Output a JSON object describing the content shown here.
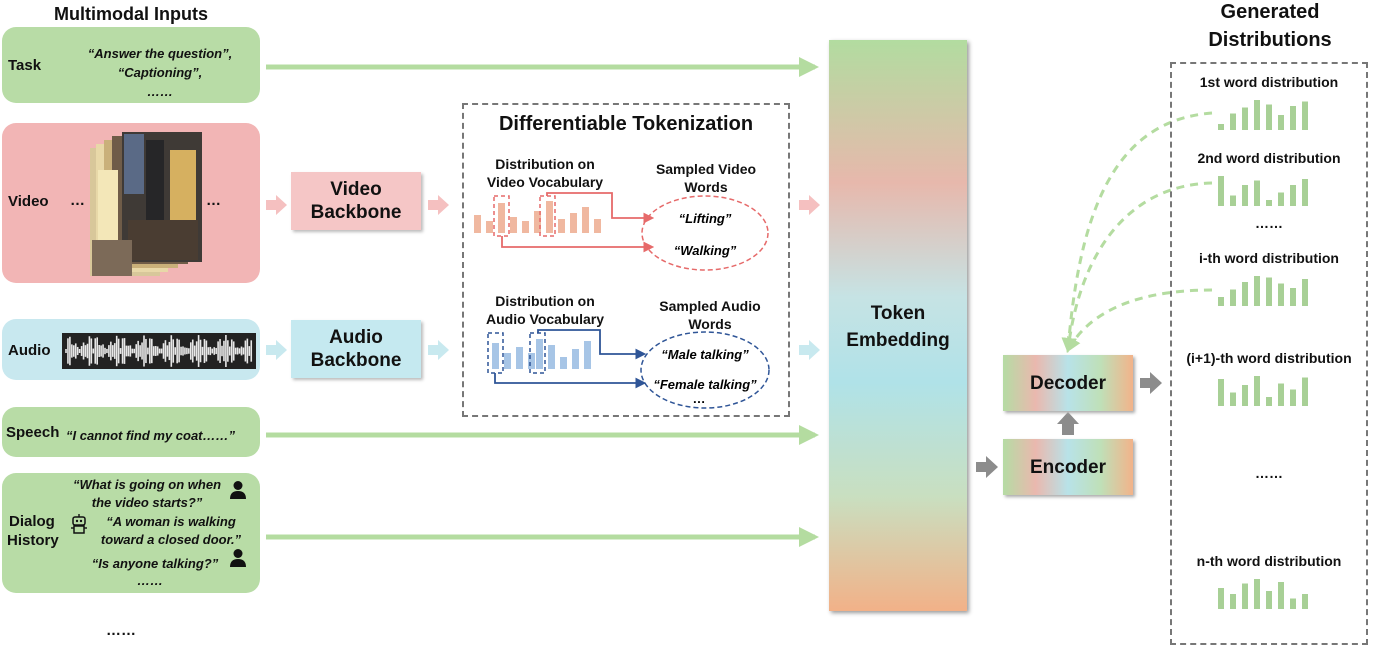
{
  "inputs_header": "Multimodal Inputs",
  "task": {
    "label": "Task",
    "lines": [
      "“Answer the question”,",
      "“Captioning”,",
      "……"
    ]
  },
  "video": {
    "label": "Video",
    "ellipsis_left": "…",
    "ellipsis_right": "…"
  },
  "audio": {
    "label": "Audio"
  },
  "speech": {
    "label": "Speech",
    "text": "“I cannot find my coat……”"
  },
  "dialog": {
    "label_line1": "Dialog",
    "label_line2": "History",
    "q1_line1": "“What is going on when",
    "q1_line2": "the video starts?”",
    "a1_line1": "“A woman is walking",
    "a1_line2": "toward a closed door.”",
    "q2": "“Is anyone talking?”",
    "more": "……"
  },
  "inputs_more": "……",
  "video_backbone": {
    "line1": "Video",
    "line2": "Backbone"
  },
  "audio_backbone": {
    "line1": "Audio",
    "line2": "Backbone"
  },
  "tokenization": {
    "title": "Differentiable Tokenization",
    "video_dist_line1": "Distribution on",
    "video_dist_line2": "Video Vocabulary",
    "video_sampled_line1": "Sampled Video",
    "video_sampled_line2": "Words",
    "video_word1": "“Lifting”",
    "video_word2": "“Walking”",
    "audio_dist_line1": "Distribution on",
    "audio_dist_line2": "Audio Vocabulary",
    "audio_sampled_line1": "Sampled Audio",
    "audio_sampled_line2": "Words",
    "audio_word1": "“Male talking”",
    "audio_word2": "“Female talking”",
    "audio_more": "…"
  },
  "token_embedding": {
    "line1": "Token",
    "line2": "Embedding"
  },
  "decoder_label": "Decoder",
  "encoder_label": "Encoder",
  "outputs_header_line1": "Generated",
  "outputs_header_line2": "Distributions",
  "distributions": [
    {
      "label": "1st word distribution",
      "bars": [
        0.2,
        0.55,
        0.75,
        1.0,
        0.85,
        0.5,
        0.8,
        0.95
      ]
    },
    {
      "label": "2nd word distribution",
      "bars": [
        1.0,
        0.35,
        0.7,
        0.85,
        0.2,
        0.45,
        0.7,
        0.9
      ]
    },
    {
      "label": "……",
      "bars": []
    },
    {
      "label": "i-th word distribution",
      "bars": [
        0.3,
        0.55,
        0.8,
        1.0,
        0.95,
        0.75,
        0.6,
        0.9
      ]
    },
    {
      "label": "(i+1)-th word distribution",
      "bars": [
        0.9,
        0.45,
        0.7,
        1.0,
        0.3,
        0.75,
        0.55,
        0.95
      ]
    },
    {
      "label": "……",
      "bars": []
    },
    {
      "label": "n-th word distribution",
      "bars": [
        0.7,
        0.5,
        0.85,
        1.0,
        0.6,
        0.9,
        0.35,
        0.5
      ]
    }
  ],
  "colors": {
    "green_panel": "#b8dca6",
    "pink_panel": "#f2b5b5",
    "blue_panel": "#c8e8ef",
    "video_backbone": "#f5c6c6",
    "audio_backbone": "#c5e9f0",
    "green_arrow": "#b4dca0",
    "pink_arrow": "#f5c0c0",
    "blue_arrow": "#c8e9ef",
    "video_bar": "#f0b8a0",
    "audio_bar": "#a7c5e6",
    "video_line": "#e66a6a",
    "audio_line": "#2f5597",
    "output_bar": "#a8d096",
    "gray_arrow": "#8c8c8c"
  }
}
